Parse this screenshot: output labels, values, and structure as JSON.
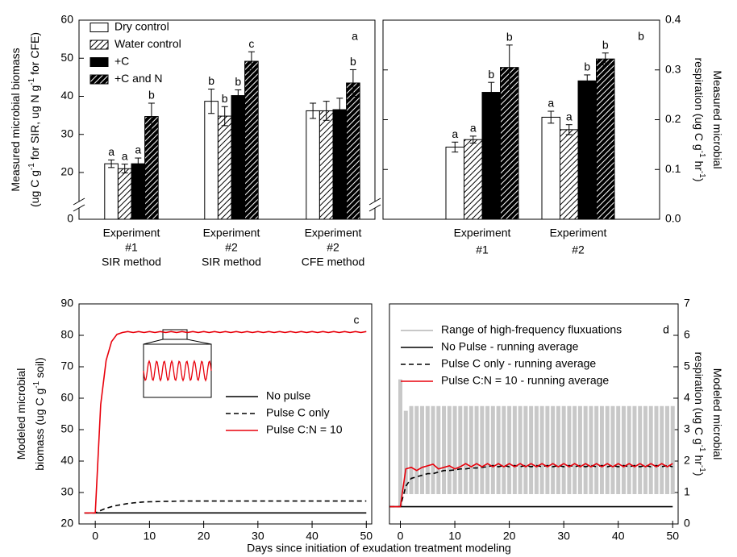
{
  "chart_data": [
    {
      "type": "bar",
      "label": "a",
      "ylabel": [
        [
          "Measured microbial biomass"
        ],
        [
          "(ug C g",
          "-1",
          " for SIR, ug N g",
          "-1",
          " for CFE)"
        ]
      ],
      "categories": [
        [
          "Experiment",
          "#1",
          "SIR method"
        ],
        [
          "Experiment",
          "#2",
          "SIR method"
        ],
        [
          "Experiment",
          "#2",
          "CFE method"
        ]
      ],
      "series": [
        {
          "name": "Dry control",
          "color": "#ffffff",
          "hatch": false,
          "values": [
            22.3,
            38.7,
            36.2
          ],
          "errors": [
            1.0,
            3.2,
            2.0
          ],
          "letters": [
            "a",
            "b",
            null
          ]
        },
        {
          "name": "Water control",
          "color": "#ffffff",
          "hatch": true,
          "values": [
            21.0,
            34.8,
            36.2
          ],
          "errors": [
            1.2,
            2.5,
            2.5
          ],
          "letters": [
            "a",
            "b",
            null
          ]
        },
        {
          "name": "+C",
          "color": "#000000",
          "hatch": false,
          "values": [
            22.3,
            40.2,
            36.5
          ],
          "errors": [
            1.5,
            1.5,
            3.0
          ],
          "letters": [
            "a",
            "b",
            null
          ]
        },
        {
          "name": "+C and N",
          "color": "#000000",
          "hatch": true,
          "values": [
            34.7,
            49.2,
            43.5
          ],
          "errors": [
            3.5,
            2.5,
            3.5
          ],
          "letters": [
            "b",
            "c",
            "b"
          ]
        }
      ],
      "ylim": [
        0,
        60
      ],
      "yticks": [
        0,
        20,
        30,
        40,
        50,
        60
      ],
      "axis_break": true,
      "y_axis": "left",
      "legend": "upper left"
    },
    {
      "type": "bar",
      "label": "b",
      "ylabel": [
        [
          "Measured microbial"
        ],
        [
          "respiration (ug C g",
          "-1",
          " hr",
          "-1",
          ")"
        ]
      ],
      "categories": [
        [
          "Experiment",
          "#1"
        ],
        [
          "Experiment",
          "#2"
        ]
      ],
      "series": [
        {
          "color": "#ffffff",
          "hatch": false,
          "values": [
            0.145,
            0.205
          ],
          "errors": [
            0.01,
            0.012
          ],
          "letters": [
            "a",
            "a"
          ]
        },
        {
          "color": "#ffffff",
          "hatch": true,
          "values": [
            0.16,
            0.18
          ],
          "errors": [
            0.007,
            0.01
          ],
          "letters": [
            "a",
            "a"
          ]
        },
        {
          "color": "#000000",
          "hatch": false,
          "values": [
            0.255,
            0.278
          ],
          "errors": [
            0.02,
            0.012
          ],
          "letters": [
            "b",
            "b"
          ]
        },
        {
          "color": "#000000",
          "hatch": true,
          "values": [
            0.305,
            0.322
          ],
          "errors": [
            0.045,
            0.012
          ],
          "letters": [
            "b",
            "b"
          ]
        }
      ],
      "ylim": [
        0,
        0.4
      ],
      "yticks": [
        {
          "value": 0,
          "label": "0.0"
        },
        0.1,
        0.2,
        0.3,
        0.4
      ],
      "y_axis": "right",
      "mirror_yticks": true
    },
    {
      "type": "line",
      "label": "c",
      "ylabel": [
        [
          "Modeled microbial"
        ],
        [
          "biomass (ug C g",
          "-1",
          " soil)"
        ]
      ],
      "xlabel": "Days since initiation of exudation treatment modeling",
      "x": [
        -2,
        -1,
        0,
        1,
        2,
        3,
        4,
        5,
        6,
        7,
        8,
        9,
        10,
        11,
        12,
        13,
        14,
        15,
        16,
        17,
        18,
        19,
        20,
        21,
        22,
        23,
        24,
        25,
        26,
        27,
        28,
        29,
        30,
        31,
        32,
        33,
        34,
        35,
        36,
        37,
        38,
        39,
        40,
        41,
        42,
        43,
        44,
        45,
        46,
        47,
        48,
        49,
        50
      ],
      "series": [
        {
          "name": "No pulse",
          "color": "#000000",
          "dashed": false,
          "values": [
            23.5,
            23.5,
            23.5,
            23.5,
            23.5,
            23.5,
            23.5,
            23.5,
            23.5,
            23.5,
            23.5,
            23.5,
            23.5,
            23.5,
            23.5,
            23.5,
            23.5,
            23.5,
            23.5,
            23.5,
            23.5,
            23.5,
            23.5,
            23.5,
            23.5,
            23.5,
            23.5,
            23.5,
            23.5,
            23.5,
            23.5,
            23.5,
            23.5,
            23.5,
            23.5,
            23.5,
            23.5,
            23.5,
            23.5,
            23.5,
            23.5,
            23.5,
            23.5,
            23.5,
            23.5,
            23.5,
            23.5,
            23.5,
            23.5,
            23.5,
            23.5,
            23.5,
            23.5
          ]
        },
        {
          "name": "Pulse C only",
          "color": "#000000",
          "dashed": true,
          "values": [
            23.5,
            23.5,
            23.5,
            24.3,
            25.0,
            25.5,
            25.9,
            26.2,
            26.5,
            26.7,
            26.85,
            27.0,
            27.05,
            27.1,
            27.15,
            27.2,
            27.2,
            27.25,
            27.3,
            27.3,
            27.3,
            27.3,
            27.3,
            27.3,
            27.3,
            27.3,
            27.3,
            27.3,
            27.3,
            27.3,
            27.3,
            27.3,
            27.3,
            27.3,
            27.3,
            27.3,
            27.3,
            27.3,
            27.3,
            27.3,
            27.3,
            27.3,
            27.3,
            27.3,
            27.3,
            27.3,
            27.3,
            27.3,
            27.3,
            27.3,
            27.3,
            27.3,
            27.3
          ]
        },
        {
          "name": "Pulse C:N = 10",
          "color": "#e8000b",
          "dashed": false,
          "values": [
            23.5,
            23.5,
            23.5,
            58,
            72,
            78,
            80.3,
            80.9,
            81.2,
            80.9,
            81.2,
            80.9,
            81.2,
            80.9,
            81.2,
            80.9,
            81.2,
            80.9,
            81.2,
            80.9,
            81.2,
            80.9,
            81.2,
            80.9,
            81.2,
            80.9,
            81.2,
            80.9,
            81.2,
            80.9,
            81.2,
            80.9,
            81.2,
            80.9,
            81.2,
            80.9,
            81.2,
            80.9,
            81.2,
            80.9,
            81.2,
            80.9,
            81.2,
            80.9,
            81.2,
            80.9,
            81.2,
            80.9,
            81.2,
            80.9,
            81.2,
            80.9,
            81.2
          ]
        }
      ],
      "xlim": [
        -3,
        51
      ],
      "xticks": [
        0,
        10,
        20,
        30,
        40,
        50
      ],
      "ylim": [
        20,
        90
      ],
      "yticks": [
        20,
        30,
        40,
        50,
        60,
        70,
        80,
        90
      ],
      "y_axis": "left",
      "legend": "center right"
    },
    {
      "type": "line",
      "label": "d",
      "ylabel": [
        [
          "Modeled microbial"
        ],
        [
          "respiration (ug C g",
          "-1",
          " hr",
          "-1",
          ")"
        ]
      ],
      "x": [
        -2,
        -1,
        0,
        1,
        2,
        3,
        4,
        5,
        6,
        7,
        8,
        9,
        10,
        11,
        12,
        13,
        14,
        15,
        16,
        17,
        18,
        19,
        20,
        21,
        22,
        23,
        24,
        25,
        26,
        27,
        28,
        29,
        30,
        31,
        32,
        33,
        34,
        35,
        36,
        37,
        38,
        39,
        40,
        41,
        42,
        43,
        44,
        45,
        46,
        47,
        48,
        49,
        50
      ],
      "series": [
        {
          "name": "Range of high-frequency fluxuations",
          "color": "#c8c8c8",
          "low": [
            null,
            null,
            0.55,
            0.95,
            0.95,
            0.95,
            0.95,
            0.95,
            0.95,
            0.95,
            0.95,
            0.95,
            0.95,
            0.95,
            0.95,
            0.95,
            0.95,
            0.95,
            0.95,
            0.95,
            0.95,
            0.95,
            0.95,
            0.95,
            0.95,
            0.95,
            0.95,
            0.95,
            0.95,
            0.95,
            0.95,
            0.95,
            0.95,
            0.95,
            0.95,
            0.95,
            0.95,
            0.95,
            0.95,
            0.95,
            0.95,
            0.95,
            0.95,
            0.95,
            0.95,
            0.95,
            0.95,
            0.95,
            0.95,
            0.95,
            0.95,
            0.95,
            0.95
          ],
          "high": [
            null,
            null,
            4.6,
            3.6,
            3.75,
            3.75,
            3.75,
            3.75,
            3.75,
            3.75,
            3.75,
            3.75,
            3.75,
            3.75,
            3.75,
            3.75,
            3.75,
            3.75,
            3.75,
            3.75,
            3.75,
            3.75,
            3.75,
            3.75,
            3.75,
            3.75,
            3.75,
            3.75,
            3.75,
            3.75,
            3.75,
            3.75,
            3.75,
            3.75,
            3.75,
            3.75,
            3.75,
            3.75,
            3.75,
            3.75,
            3.75,
            3.75,
            3.75,
            3.75,
            3.75,
            3.75,
            3.75,
            3.75,
            3.75,
            3.75,
            3.75,
            3.75,
            3.75
          ]
        },
        {
          "name": "No Pulse - running average",
          "color": "#000000",
          "dashed": false,
          "values": [
            0.55,
            0.55,
            0.55,
            0.55,
            0.55,
            0.55,
            0.55,
            0.55,
            0.55,
            0.55,
            0.55,
            0.55,
            0.55,
            0.55,
            0.55,
            0.55,
            0.55,
            0.55,
            0.55,
            0.55,
            0.55,
            0.55,
            0.55,
            0.55,
            0.55,
            0.55,
            0.55,
            0.55,
            0.55,
            0.55,
            0.55,
            0.55,
            0.55,
            0.55,
            0.55,
            0.55,
            0.55,
            0.55,
            0.55,
            0.55,
            0.55,
            0.55,
            0.55,
            0.55,
            0.55,
            0.55,
            0.55,
            0.55,
            0.55,
            0.55,
            0.55,
            0.55,
            0.55
          ]
        },
        {
          "name": "Pulse C only - running average",
          "color": "#000000",
          "dashed": true,
          "values": [
            0.55,
            0.55,
            0.55,
            1.2,
            1.45,
            1.5,
            1.55,
            1.6,
            1.6,
            1.65,
            1.7,
            1.7,
            1.72,
            1.75,
            1.75,
            1.78,
            1.78,
            1.8,
            1.82,
            1.86,
            1.82,
            1.86,
            1.82,
            1.86,
            1.82,
            1.86,
            1.82,
            1.86,
            1.82,
            1.86,
            1.82,
            1.86,
            1.82,
            1.86,
            1.82,
            1.86,
            1.82,
            1.86,
            1.82,
            1.86,
            1.82,
            1.86,
            1.82,
            1.86,
            1.82,
            1.86,
            1.82,
            1.86,
            1.82,
            1.86,
            1.82,
            1.86,
            1.82
          ]
        },
        {
          "name": "Pulse C:N = 10 - running average",
          "color": "#e8000b",
          "dashed": false,
          "values": [
            0.55,
            0.55,
            0.55,
            1.75,
            1.8,
            1.7,
            1.8,
            1.85,
            1.9,
            1.75,
            1.8,
            1.85,
            1.75,
            1.82,
            1.92,
            1.82,
            1.92,
            1.82,
            1.92,
            1.82,
            1.92,
            1.82,
            1.92,
            1.82,
            1.92,
            1.82,
            1.92,
            1.82,
            1.92,
            1.82,
            1.92,
            1.82,
            1.92,
            1.82,
            1.92,
            1.82,
            1.92,
            1.82,
            1.92,
            1.82,
            1.92,
            1.82,
            1.92,
            1.82,
            1.92,
            1.82,
            1.92,
            1.82,
            1.92,
            1.82,
            1.92,
            1.82,
            1.92
          ]
        }
      ],
      "xlim": [
        -2,
        51
      ],
      "xticks": [
        0,
        10,
        20,
        30,
        40,
        50
      ],
      "ylim": [
        0,
        7
      ],
      "yticks": [
        0,
        1,
        2,
        3,
        4,
        5,
        6,
        7
      ],
      "y_axis": "right",
      "legend": "upper left"
    }
  ]
}
